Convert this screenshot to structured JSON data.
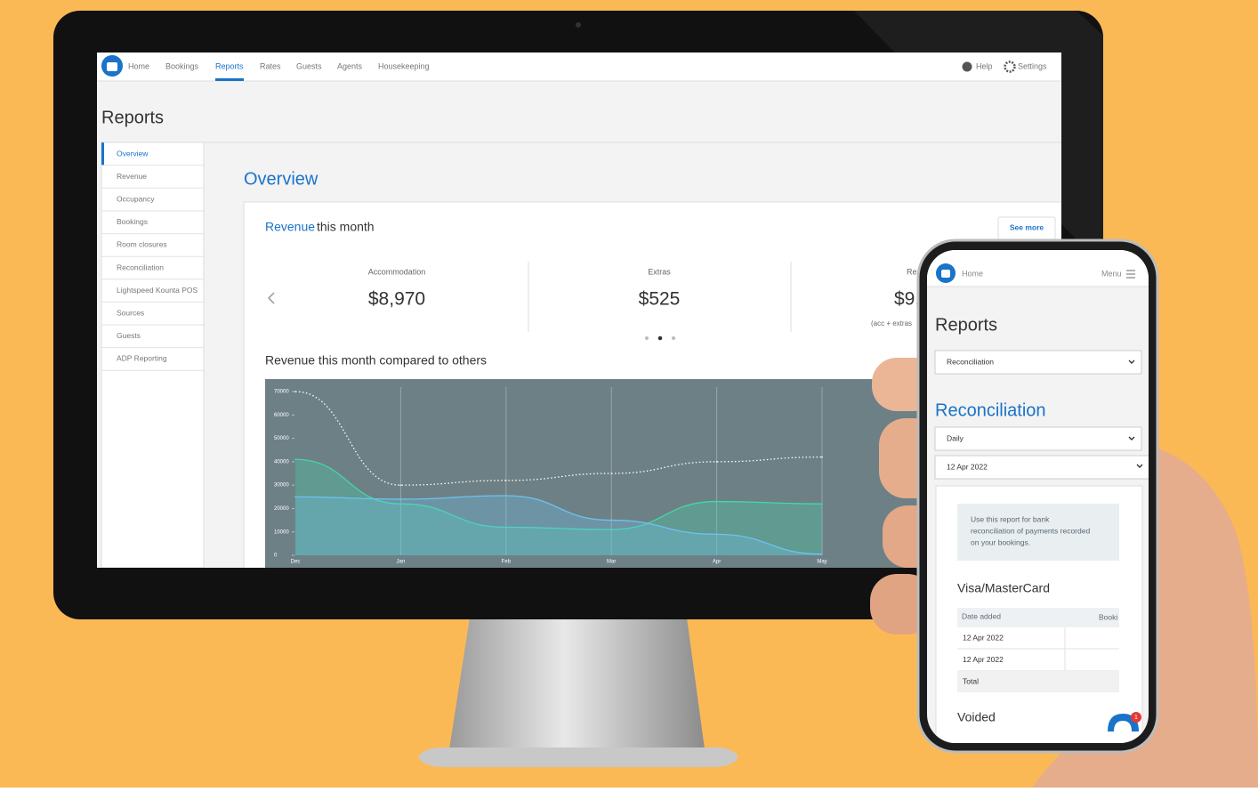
{
  "desktop": {
    "nav": [
      "Home",
      "Bookings",
      "Reports",
      "Rates",
      "Guests",
      "Agents",
      "Housekeeping"
    ],
    "help": "Help",
    "settings": "Settings",
    "page_title": "Reports",
    "sidebar": [
      "Overview",
      "Revenue",
      "Occupancy",
      "Bookings",
      "Room closures",
      "Reconciliation",
      "Lightspeed Kounta POS",
      "Sources",
      "Guests",
      "ADP Reporting"
    ],
    "section_title": "Overview",
    "card": {
      "title_highlight": "Revenue",
      "title_rest": "this month",
      "button": "See more",
      "stats": [
        {
          "label": "Accommodation",
          "value": "$8,970"
        },
        {
          "label": "Extras",
          "value": "$525"
        },
        {
          "label": "Re",
          "value": "$9,",
          "note": "(acc + extras"
        }
      ]
    },
    "chart": {
      "type": "area",
      "title": "Revenue this month compared to others",
      "categories": [
        "Dec",
        "Jan",
        "Feb",
        "Mar",
        "Apr",
        "May"
      ],
      "ylim": [
        0,
        70000
      ],
      "yticks": [
        0,
        10000,
        20000,
        30000,
        40000,
        50000,
        60000,
        70000
      ],
      "grid": true,
      "series": [
        {
          "color": "#43d8a8",
          "style": "area",
          "values": [
            41000,
            22000,
            12000,
            11000,
            23000,
            22000
          ]
        },
        {
          "color": "#6cc3f0",
          "style": "area",
          "values": [
            25000,
            24000,
            25500,
            15000,
            9000,
            500
          ]
        },
        {
          "color": "#ffffff",
          "style": "dotted",
          "values": [
            70000,
            30000,
            32000,
            35000,
            40000,
            42000
          ]
        }
      ]
    }
  },
  "phone": {
    "home": "Home",
    "menu": "Menu",
    "title": "Reports",
    "report_select": "Reconciliation",
    "section_title": "Reconciliation",
    "period_select": "Daily",
    "date_select": "12 Apr 2022",
    "info": [
      "Use this report for bank",
      "reconciliation of payments recorded",
      "on your bookings."
    ],
    "table_title": "Visa/MasterCard",
    "table": {
      "headers": [
        "Date added",
        "Booki"
      ],
      "rows": [
        [
          "12 Apr 2022"
        ],
        [
          "12 Apr 2022"
        ],
        [
          "Total"
        ]
      ]
    },
    "voided": "Voided",
    "badge": "1"
  }
}
